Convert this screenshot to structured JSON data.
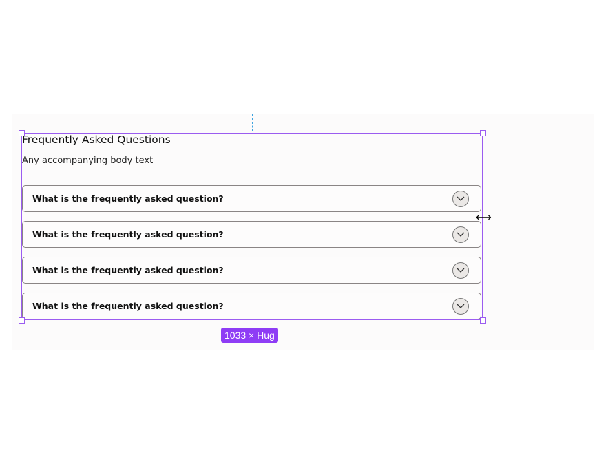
{
  "faq": {
    "title": "Frequently Asked Questions",
    "body": "Any accompanying body text",
    "items": [
      {
        "question": "What is the frequently asked question?",
        "icon": "chevron-down-icon"
      },
      {
        "question": "What is the frequently asked question?",
        "icon": "chevron-down-icon"
      },
      {
        "question": "What is the frequently asked question?",
        "icon": "chevron-down-icon"
      },
      {
        "question": "What is the frequently asked question?",
        "icon": "chevron-down-icon"
      }
    ]
  },
  "selection": {
    "size_label": "1033 × Hug",
    "color": "#8e3cf5"
  },
  "cursor": {
    "icon": "resize-horizontal-cursor",
    "glyph": "⟷"
  }
}
